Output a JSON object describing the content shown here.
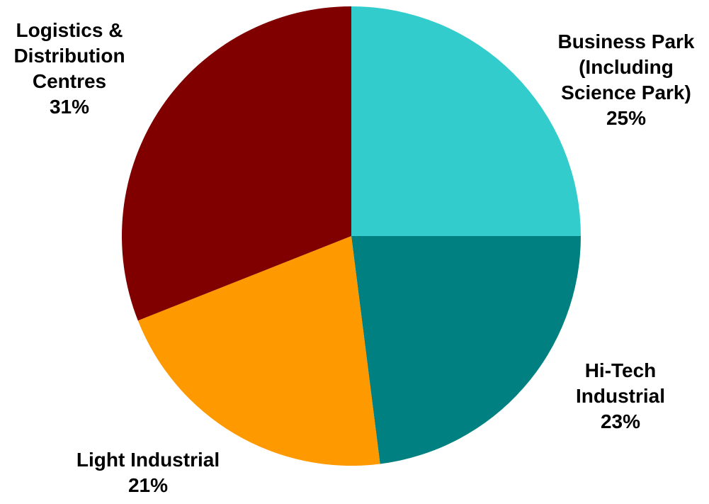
{
  "chart_data": {
    "type": "pie",
    "title": "",
    "start_angle_deg": 0,
    "direction": "clockwise",
    "legend": "none",
    "slices": [
      {
        "name": "Business Park (Including Science Park)",
        "value": 25,
        "label_lines": [
          "Business Park",
          "(Including",
          "Science Park)"
        ],
        "value_label": "25%",
        "color": "#33CCCC"
      },
      {
        "name": "Hi-Tech Industrial",
        "value": 23,
        "label_lines": [
          "Hi-Tech",
          "Industrial"
        ],
        "value_label": "23%",
        "color": "#008080"
      },
      {
        "name": "Light Industrial",
        "value": 21,
        "label_lines": [
          "Light Industrial"
        ],
        "value_label": "21%",
        "color": "#FF9900"
      },
      {
        "name": "Logistics & Distribution Centres",
        "value": 31,
        "label_lines": [
          "Logistics &",
          "Distribution",
          "Centres"
        ],
        "value_label": "31%",
        "color": "#800000"
      }
    ]
  }
}
